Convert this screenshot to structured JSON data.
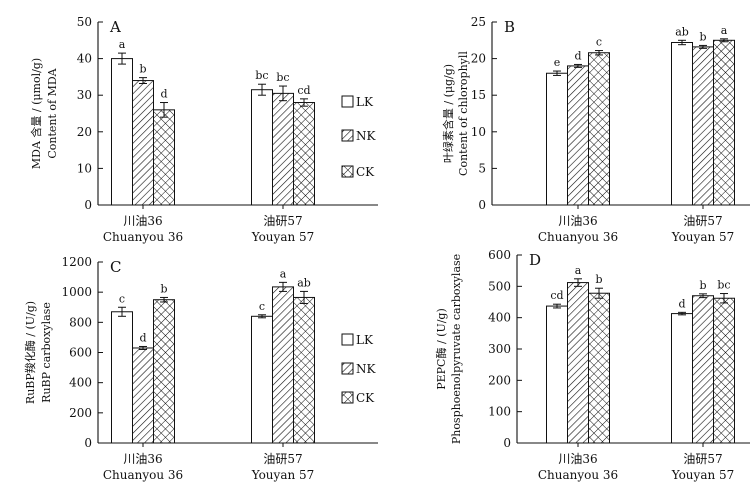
{
  "fill_patterns": {
    "LK": "solid-white",
    "NK": "diagonal-hatch",
    "CK": "cross-hatch"
  },
  "chart_data": [
    {
      "panel": "A",
      "type": "bar",
      "ylabel_cn": "MDA 含量 / (μmol/g)",
      "ylabel_en": "Content of MDA",
      "ylim": [
        0,
        50
      ],
      "yticks": [
        "0",
        "10",
        "20",
        "30",
        "40",
        "50"
      ],
      "categories": [
        {
          "cn": "川油36",
          "en": "Chuanyou 36"
        },
        {
          "cn": "油研57",
          "en": "Youyan 57"
        }
      ],
      "series": [
        {
          "name": "LK",
          "values": [
            40,
            31.5
          ],
          "errors": [
            1.5,
            1.5
          ],
          "sig": [
            "a",
            "bc"
          ]
        },
        {
          "name": "NK",
          "values": [
            34,
            30.5
          ],
          "errors": [
            0.8,
            2.0
          ],
          "sig": [
            "b",
            "bc"
          ]
        },
        {
          "name": "CK",
          "values": [
            26,
            28
          ],
          "errors": [
            2.0,
            1.0
          ],
          "sig": [
            "d",
            "cd"
          ]
        }
      ],
      "legend": [
        "LK",
        "NK",
        "CK"
      ]
    },
    {
      "panel": "B",
      "type": "bar",
      "ylabel_cn": "叶绿素含量 / (μg/g)",
      "ylabel_en": "Content of chlorophyll",
      "ylim": [
        0,
        25
      ],
      "yticks": [
        "0",
        "5",
        "10",
        "15",
        "20",
        "25"
      ],
      "categories": [
        {
          "cn": "川油36",
          "en": "Chuanyou 36"
        },
        {
          "cn": "油研57",
          "en": "Youyan 57"
        }
      ],
      "series": [
        {
          "name": "LK",
          "values": [
            18,
            22.2
          ],
          "errors": [
            0.3,
            0.3
          ],
          "sig": [
            "e",
            "ab"
          ]
        },
        {
          "name": "NK",
          "values": [
            19,
            21.6
          ],
          "errors": [
            0.2,
            0.2
          ],
          "sig": [
            "d",
            "b"
          ]
        },
        {
          "name": "CK",
          "values": [
            20.8,
            22.5
          ],
          "errors": [
            0.3,
            0.2
          ],
          "sig": [
            "c",
            "a"
          ]
        }
      ],
      "legend": []
    },
    {
      "panel": "C",
      "type": "bar",
      "ylabel_cn": "RuBP羧化酶 / (U/g)",
      "ylabel_en": "RuBP carboxylase",
      "ylim": [
        0,
        1200
      ],
      "yticks": [
        "0",
        "200",
        "400",
        "600",
        "800",
        "1000",
        "1200"
      ],
      "categories": [
        {
          "cn": "川油36",
          "en": "Chuanyou 36"
        },
        {
          "cn": "油研57",
          "en": "Youyan 57"
        }
      ],
      "series": [
        {
          "name": "LK",
          "values": [
            870,
            840
          ],
          "errors": [
            30,
            10
          ],
          "sig": [
            "c",
            "c"
          ]
        },
        {
          "name": "NK",
          "values": [
            630,
            1035
          ],
          "errors": [
            10,
            30
          ],
          "sig": [
            "d",
            "a"
          ]
        },
        {
          "name": "CK",
          "values": [
            950,
            965
          ],
          "errors": [
            15,
            40
          ],
          "sig": [
            "b",
            "ab"
          ]
        }
      ],
      "legend": [
        "LK",
        "NK",
        "CK"
      ]
    },
    {
      "panel": "D",
      "type": "bar",
      "ylabel_cn": "PEPC酶 / (U/g)",
      "ylabel_en": "Phosphoenolpyruvate carboxylase",
      "ylim": [
        0,
        600
      ],
      "yticks": [
        "0",
        "100",
        "200",
        "300",
        "400",
        "500",
        "600"
      ],
      "categories": [
        {
          "cn": "川油36",
          "en": "Chuanyou 36"
        },
        {
          "cn": "油研57",
          "en": "Youyan 57"
        }
      ],
      "series": [
        {
          "name": "LK",
          "values": [
            437,
            413
          ],
          "errors": [
            6,
            4
          ],
          "sig": [
            "cd",
            "d"
          ]
        },
        {
          "name": "NK",
          "values": [
            512,
            470
          ],
          "errors": [
            12,
            6
          ],
          "sig": [
            "a",
            "b"
          ]
        },
        {
          "name": "CK",
          "values": [
            478,
            462
          ],
          "errors": [
            16,
            15
          ],
          "sig": [
            "b",
            "bc"
          ]
        }
      ],
      "legend": []
    }
  ]
}
